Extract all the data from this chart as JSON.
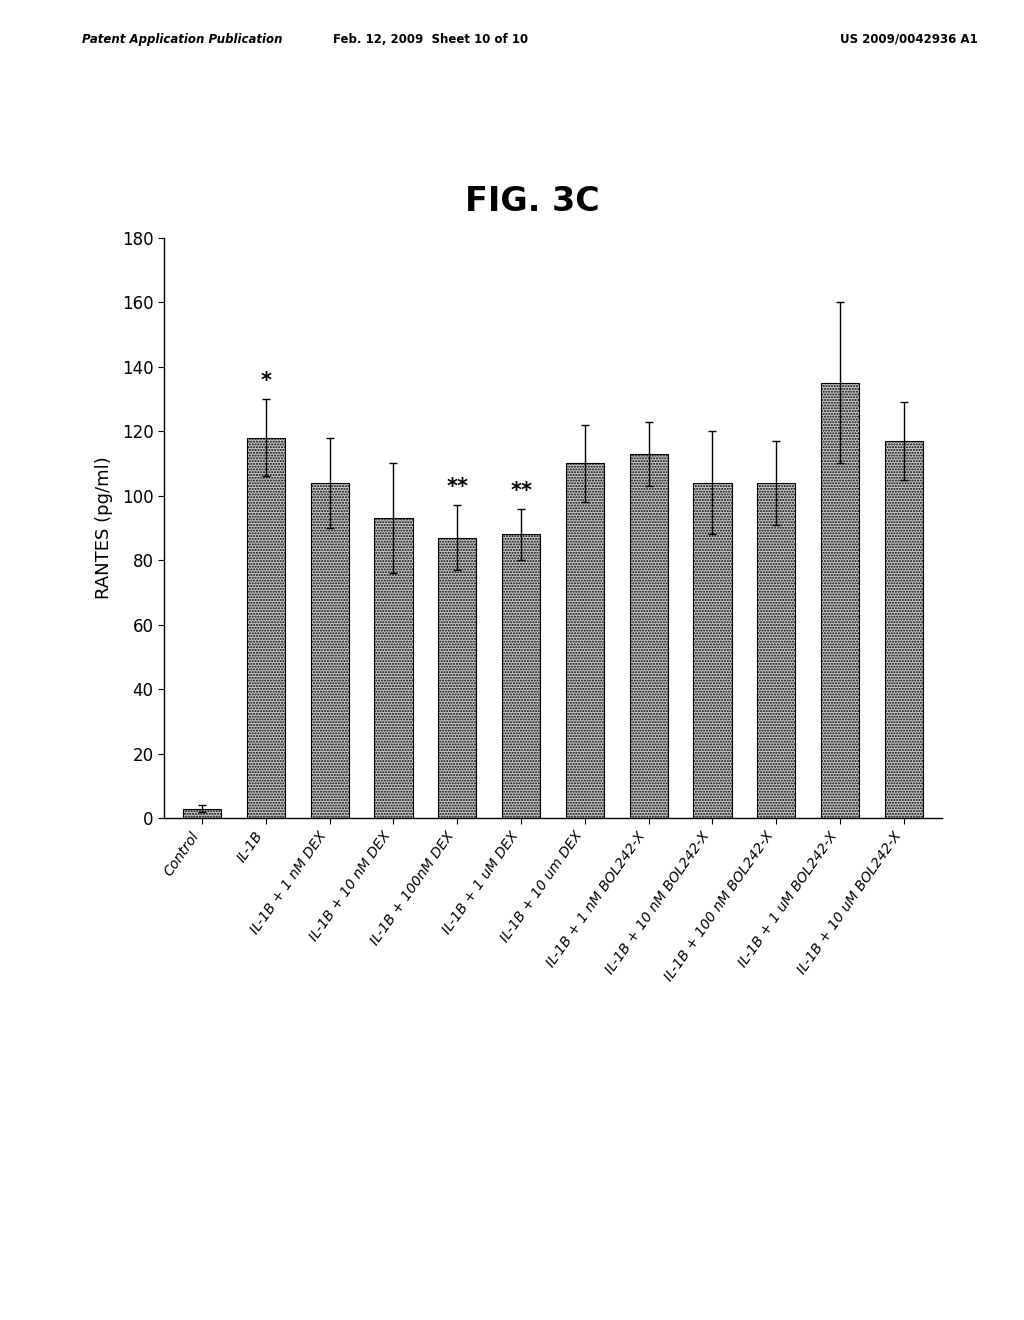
{
  "title": "FIG. 3C",
  "ylabel": "RANTES (pg/ml)",
  "ylim": [
    0,
    180
  ],
  "yticks": [
    0,
    20,
    40,
    60,
    80,
    100,
    120,
    140,
    160,
    180
  ],
  "categories": [
    "Control",
    "IL-1B",
    "IL-1B + 1 nM DEX",
    "IL-1B + 10 nM DEX",
    "IL-1B + 100nM DEX",
    "IL-1B + 1 uM DEX",
    "IL-1B + 10 um DEX",
    "IL-1B + 1 nM BOL242-X",
    "IL-1B + 10 nM BOL242-X",
    "IL-1B + 100 nM BOL242-X",
    "IL-1B + 1 uM BOL242-X",
    "IL-1B + 10 uM BOL242-X"
  ],
  "values": [
    3,
    118,
    104,
    93,
    87,
    88,
    110,
    113,
    104,
    104,
    135,
    117
  ],
  "errors": [
    1,
    12,
    14,
    17,
    10,
    8,
    12,
    10,
    16,
    13,
    25,
    12
  ],
  "annotations": [
    {
      "bar_index": 1,
      "text": "*"
    },
    {
      "bar_index": 4,
      "text": "**"
    },
    {
      "bar_index": 5,
      "text": "**"
    }
  ],
  "bar_color": "#c8c8c8",
  "bar_edgecolor": "#000000",
  "header_left": "Patent Application Publication",
  "header_center": "Feb. 12, 2009  Sheet 10 of 10",
  "header_right": "US 2009/0042936 A1",
  "background_color": "#ffffff",
  "title_fontsize": 24,
  "axis_fontsize": 13,
  "tick_fontsize": 12,
  "annotation_fontsize": 15,
  "xlabel_fontsize": 10,
  "xlabel_rotation": 55
}
